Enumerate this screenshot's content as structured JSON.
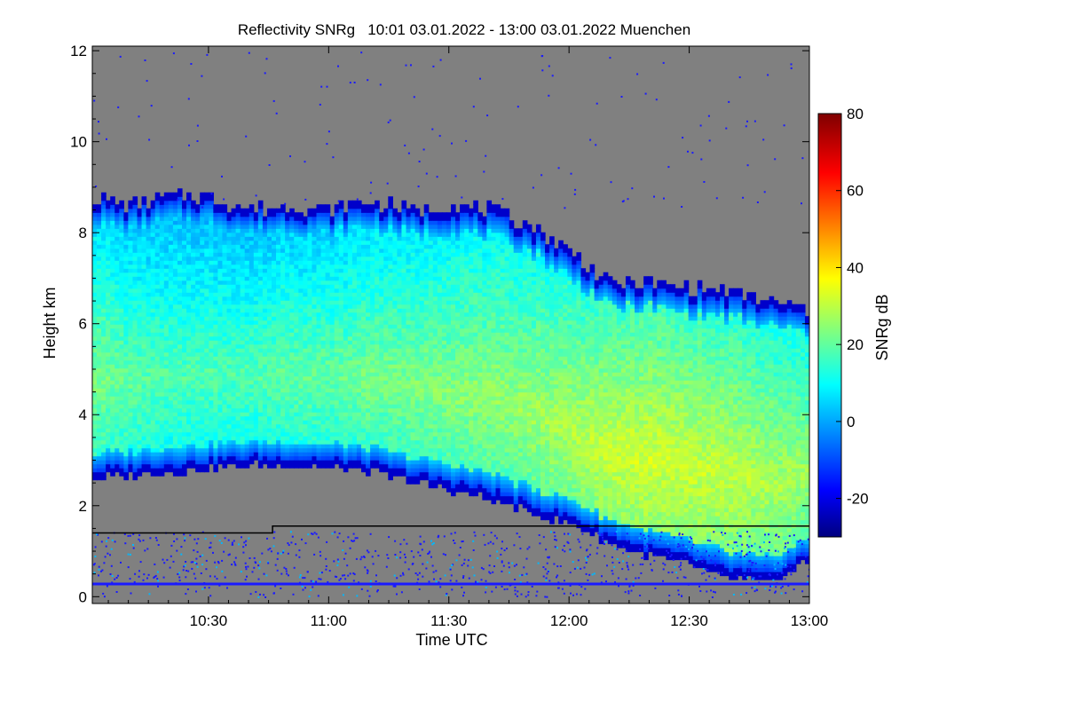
{
  "chart_data": {
    "type": "heatmap",
    "title": "Reflectivity SNRg   10:01 03.01.2022 - 13:00 03.01.2022 Muenchen",
    "xlabel": "Time UTC",
    "ylabel": "Height km",
    "x_unit": "HH:MM UTC",
    "x_ticks": [
      "10:30",
      "11:00",
      "11:30",
      "12:00",
      "12:30",
      "13:00"
    ],
    "x_tick_values": [
      630,
      660,
      690,
      720,
      750,
      780
    ],
    "xlim": [
      601,
      780
    ],
    "y_ticks": [
      "0",
      "2",
      "4",
      "6",
      "8",
      "10",
      "12"
    ],
    "y_tick_values": [
      0,
      2,
      4,
      6,
      8,
      10,
      12
    ],
    "ylim": [
      -0.15,
      12.1
    ],
    "grid": false,
    "background_color": "#808080",
    "colorbar": {
      "label": "SNRg dB",
      "ticks": [
        "-20",
        "0",
        "20",
        "40",
        "60",
        "80"
      ],
      "tick_values": [
        -20,
        0,
        20,
        40,
        60,
        80
      ],
      "range": [
        -30,
        80
      ],
      "colormap": "jet"
    },
    "cloud_layer": {
      "time_min": [
        601,
        610,
        620,
        630,
        640,
        650,
        660,
        670,
        680,
        690,
        700,
        710,
        720,
        730,
        740,
        750,
        760,
        770,
        780
      ],
      "top_km": [
        8.8,
        8.6,
        8.8,
        8.8,
        8.5,
        8.6,
        8.5,
        8.7,
        8.5,
        8.6,
        8.5,
        8.2,
        7.6,
        6.9,
        6.9,
        6.8,
        6.7,
        6.5,
        6.3
      ],
      "base_km": [
        2.6,
        2.65,
        2.75,
        2.8,
        2.9,
        2.9,
        2.85,
        2.75,
        2.55,
        2.35,
        2.15,
        1.85,
        1.6,
        1.2,
        0.9,
        0.7,
        0.4,
        0.3,
        0.8
      ],
      "peak_snr_db": [
        25,
        22,
        20,
        20,
        20,
        22,
        22,
        24,
        25,
        26,
        27,
        28,
        30,
        33,
        34,
        33,
        32,
        30,
        28
      ]
    },
    "reference_line": {
      "color": "#000000",
      "time_min": [
        601,
        646,
        646,
        780
      ],
      "height_km": [
        1.4,
        1.4,
        1.55,
        1.55
      ]
    },
    "surface_line": {
      "color": "#1a1aff",
      "height_km": 0.28
    }
  }
}
